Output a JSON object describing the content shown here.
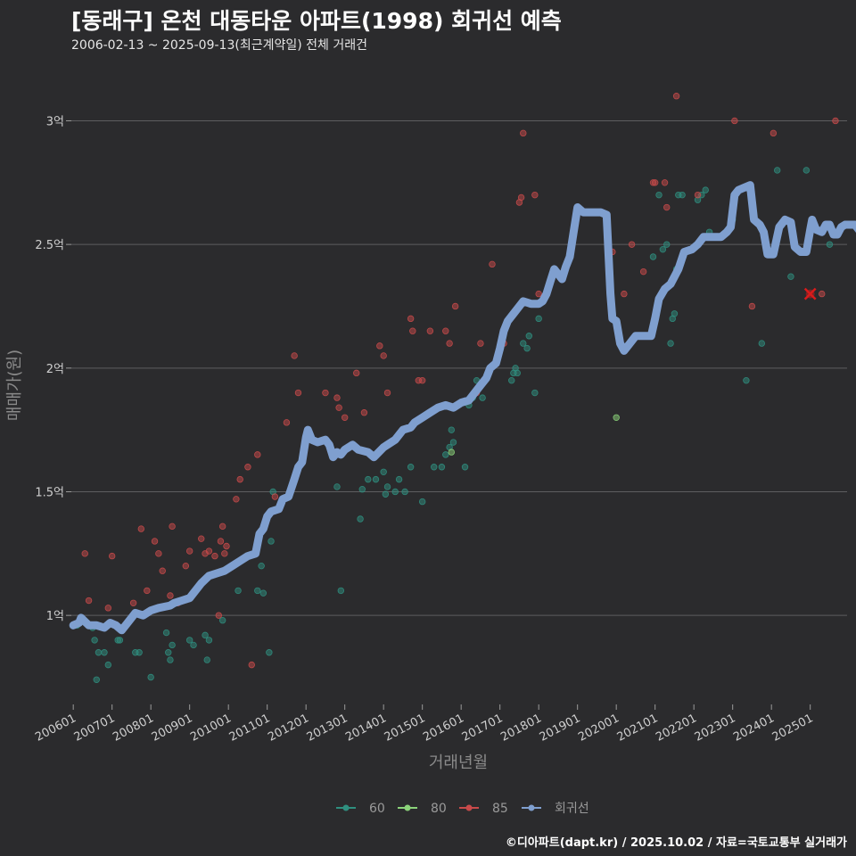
{
  "header": {
    "title": "[동래구] 온천 대동타운 아파트(1998) 회귀선 예측",
    "subtitle": "2006-02-13 ~ 2025-09-13(최근계약일) 전체 거래건"
  },
  "footer": {
    "caption": "©디아파트(dapt.kr) / 2025.10.02 / 자료=국토교통부 실거래가"
  },
  "colors": {
    "background": "#2b2b2d",
    "grid": "#5e5e60",
    "s60": "#2f8f7f",
    "s80": "#8bd37a",
    "s85": "#c84a4a",
    "regression": "#7f9fcf",
    "predict": "#d91b1b"
  },
  "chart_data": {
    "type": "scatter",
    "title": "[동래구] 온천 대동타운 아파트(1998) 회귀선 예측",
    "subtitle": "2006-02-13 ~ 2025-09-13(최근계약일) 전체 거래건",
    "xlabel": "거래년월",
    "ylabel": "매매가(원)",
    "xlim": [
      2005.95,
      2025.95
    ],
    "ylim": [
      0.64,
      3.2
    ],
    "x_ticks": [
      {
        "value": 2006.0,
        "label": "200601"
      },
      {
        "value": 2007.0,
        "label": "200701"
      },
      {
        "value": 2008.0,
        "label": "200801"
      },
      {
        "value": 2009.0,
        "label": "200901"
      },
      {
        "value": 2010.0,
        "label": "201001"
      },
      {
        "value": 2011.0,
        "label": "201101"
      },
      {
        "value": 2012.0,
        "label": "201201"
      },
      {
        "value": 2013.0,
        "label": "201301"
      },
      {
        "value": 2014.0,
        "label": "201401"
      },
      {
        "value": 2015.0,
        "label": "201501"
      },
      {
        "value": 2016.0,
        "label": "201601"
      },
      {
        "value": 2017.0,
        "label": "201701"
      },
      {
        "value": 2018.0,
        "label": "201801"
      },
      {
        "value": 2019.0,
        "label": "201901"
      },
      {
        "value": 2020.0,
        "label": "202001"
      },
      {
        "value": 2021.0,
        "label": "202101"
      },
      {
        "value": 2022.0,
        "label": "202201"
      },
      {
        "value": 2023.0,
        "label": "202301"
      },
      {
        "value": 2024.0,
        "label": "202401"
      },
      {
        "value": 2025.0,
        "label": "202501"
      }
    ],
    "y_ticks": [
      {
        "value": 1.0,
        "label": "1억"
      },
      {
        "value": 1.5,
        "label": "1.5억"
      },
      {
        "value": 2.0,
        "label": "2억"
      },
      {
        "value": 2.5,
        "label": "2.5억"
      },
      {
        "value": 3.0,
        "label": "3억"
      }
    ],
    "legend": {
      "position": "bottom",
      "entries": [
        {
          "key": "s60",
          "label": "60"
        },
        {
          "key": "s80",
          "label": "80"
        },
        {
          "key": "s85",
          "label": "85"
        },
        {
          "key": "regression",
          "label": "회귀선"
        }
      ]
    },
    "series": [
      {
        "key": "s60",
        "name": "60",
        "points": [
          [
            2006.1,
            0.96
          ],
          [
            2006.5,
            0.95
          ],
          [
            2006.55,
            0.9
          ],
          [
            2006.6,
            0.74
          ],
          [
            2006.65,
            0.85
          ],
          [
            2006.8,
            0.85
          ],
          [
            2006.9,
            0.8
          ],
          [
            2007.15,
            0.9
          ],
          [
            2007.2,
            0.9
          ],
          [
            2007.6,
            0.85
          ],
          [
            2007.7,
            0.85
          ],
          [
            2008.0,
            0.75
          ],
          [
            2008.4,
            0.93
          ],
          [
            2008.45,
            0.85
          ],
          [
            2008.5,
            0.82
          ],
          [
            2008.55,
            0.88
          ],
          [
            2009.0,
            0.9
          ],
          [
            2009.1,
            0.88
          ],
          [
            2009.4,
            0.92
          ],
          [
            2009.45,
            0.82
          ],
          [
            2009.5,
            0.9
          ],
          [
            2009.85,
            0.98
          ],
          [
            2010.25,
            1.1
          ],
          [
            2010.75,
            1.1
          ],
          [
            2010.85,
            1.2
          ],
          [
            2010.9,
            1.09
          ],
          [
            2011.05,
            0.85
          ],
          [
            2011.1,
            1.3
          ],
          [
            2011.15,
            1.5
          ],
          [
            2012.8,
            1.52
          ],
          [
            2012.9,
            1.1
          ],
          [
            2013.4,
            1.39
          ],
          [
            2013.45,
            1.51
          ],
          [
            2013.6,
            1.55
          ],
          [
            2013.8,
            1.55
          ],
          [
            2014.0,
            1.58
          ],
          [
            2014.05,
            1.49
          ],
          [
            2014.1,
            1.52
          ],
          [
            2014.3,
            1.5
          ],
          [
            2014.4,
            1.55
          ],
          [
            2014.55,
            1.5
          ],
          [
            2014.7,
            1.6
          ],
          [
            2015.0,
            1.46
          ],
          [
            2015.3,
            1.6
          ],
          [
            2015.5,
            1.6
          ],
          [
            2015.6,
            1.65
          ],
          [
            2015.7,
            1.68
          ],
          [
            2015.75,
            1.75
          ],
          [
            2015.8,
            1.7
          ],
          [
            2016.1,
            1.6
          ],
          [
            2016.2,
            1.85
          ],
          [
            2016.3,
            1.88
          ],
          [
            2016.4,
            1.95
          ],
          [
            2016.55,
            1.88
          ],
          [
            2017.3,
            1.95
          ],
          [
            2017.35,
            1.98
          ],
          [
            2017.4,
            2.0
          ],
          [
            2017.45,
            1.98
          ],
          [
            2017.6,
            2.1
          ],
          [
            2017.7,
            2.08
          ],
          [
            2017.75,
            2.13
          ],
          [
            2017.9,
            1.9
          ],
          [
            2018.0,
            2.2
          ],
          [
            2020.95,
            2.45
          ],
          [
            2021.1,
            2.7
          ],
          [
            2021.2,
            2.48
          ],
          [
            2021.3,
            2.5
          ],
          [
            2021.4,
            2.1
          ],
          [
            2021.45,
            2.2
          ],
          [
            2021.5,
            2.22
          ],
          [
            2021.55,
            2.4
          ],
          [
            2021.6,
            2.7
          ],
          [
            2021.7,
            2.7
          ],
          [
            2022.1,
            2.68
          ],
          [
            2022.2,
            2.7
          ],
          [
            2022.3,
            2.72
          ],
          [
            2022.4,
            2.55
          ],
          [
            2023.0,
            2.6
          ],
          [
            2023.35,
            1.95
          ],
          [
            2023.75,
            2.1
          ],
          [
            2024.15,
            2.8
          ],
          [
            2024.5,
            2.37
          ],
          [
            2024.9,
            2.8
          ],
          [
            2025.5,
            2.5
          ]
        ]
      },
      {
        "key": "s80",
        "name": "80",
        "points": [
          [
            2015.75,
            1.66
          ],
          [
            2020.0,
            1.8
          ]
        ]
      },
      {
        "key": "s85",
        "name": "85",
        "points": [
          [
            2006.3,
            1.25
          ],
          [
            2006.4,
            1.06
          ],
          [
            2006.9,
            1.03
          ],
          [
            2007.0,
            1.24
          ],
          [
            2007.55,
            1.05
          ],
          [
            2007.75,
            1.35
          ],
          [
            2007.9,
            1.1
          ],
          [
            2008.1,
            1.3
          ],
          [
            2008.2,
            1.25
          ],
          [
            2008.3,
            1.18
          ],
          [
            2008.5,
            1.08
          ],
          [
            2008.55,
            1.36
          ],
          [
            2008.7,
            1.05
          ],
          [
            2008.9,
            1.2
          ],
          [
            2009.0,
            1.26
          ],
          [
            2009.3,
            1.31
          ],
          [
            2009.4,
            1.25
          ],
          [
            2009.5,
            1.26
          ],
          [
            2009.65,
            1.24
          ],
          [
            2009.75,
            1.0
          ],
          [
            2009.8,
            1.3
          ],
          [
            2009.85,
            1.36
          ],
          [
            2009.9,
            1.25
          ],
          [
            2009.95,
            1.28
          ],
          [
            2010.2,
            1.47
          ],
          [
            2010.3,
            1.55
          ],
          [
            2010.5,
            1.6
          ],
          [
            2010.6,
            0.8
          ],
          [
            2010.75,
            1.65
          ],
          [
            2011.0,
            1.4
          ],
          [
            2011.2,
            1.48
          ],
          [
            2011.5,
            1.78
          ],
          [
            2011.7,
            2.05
          ],
          [
            2011.8,
            1.9
          ],
          [
            2012.5,
            1.9
          ],
          [
            2012.8,
            1.88
          ],
          [
            2012.85,
            1.84
          ],
          [
            2013.0,
            1.8
          ],
          [
            2013.3,
            1.98
          ],
          [
            2013.5,
            1.82
          ],
          [
            2013.9,
            2.09
          ],
          [
            2014.0,
            2.05
          ],
          [
            2014.1,
            1.9
          ],
          [
            2014.7,
            2.2
          ],
          [
            2014.75,
            2.15
          ],
          [
            2014.9,
            1.95
          ],
          [
            2015.0,
            1.95
          ],
          [
            2015.2,
            2.15
          ],
          [
            2015.6,
            2.15
          ],
          [
            2015.7,
            2.1
          ],
          [
            2015.85,
            2.25
          ],
          [
            2016.4,
            1.9
          ],
          [
            2016.5,
            2.1
          ],
          [
            2016.8,
            2.42
          ],
          [
            2017.1,
            2.1
          ],
          [
            2017.5,
            2.67
          ],
          [
            2017.55,
            2.69
          ],
          [
            2017.6,
            2.95
          ],
          [
            2017.9,
            2.7
          ],
          [
            2018.0,
            2.3
          ],
          [
            2019.9,
            2.47
          ],
          [
            2020.2,
            2.3
          ],
          [
            2020.4,
            2.5
          ],
          [
            2020.7,
            2.39
          ],
          [
            2020.95,
            2.75
          ],
          [
            2021.0,
            2.75
          ],
          [
            2021.25,
            2.75
          ],
          [
            2021.3,
            2.65
          ],
          [
            2021.55,
            3.1
          ],
          [
            2022.1,
            2.7
          ],
          [
            2023.05,
            3.0
          ],
          [
            2023.5,
            2.25
          ],
          [
            2024.05,
            2.95
          ],
          [
            2025.3,
            2.3
          ],
          [
            2025.65,
            3.0
          ]
        ]
      }
    ],
    "regression_line": [
      [
        2006.0,
        0.96
      ],
      [
        2006.15,
        0.97
      ],
      [
        2006.2,
        0.99
      ],
      [
        2006.4,
        0.96
      ],
      [
        2006.6,
        0.96
      ],
      [
        2006.8,
        0.95
      ],
      [
        2006.95,
        0.97
      ],
      [
        2007.1,
        0.96
      ],
      [
        2007.25,
        0.94
      ],
      [
        2007.45,
        0.98
      ],
      [
        2007.6,
        1.01
      ],
      [
        2007.8,
        1.0
      ],
      [
        2008.0,
        1.02
      ],
      [
        2008.2,
        1.03
      ],
      [
        2008.5,
        1.04
      ],
      [
        2008.6,
        1.05
      ],
      [
        2008.8,
        1.06
      ],
      [
        2009.0,
        1.07
      ],
      [
        2009.1,
        1.09
      ],
      [
        2009.3,
        1.13
      ],
      [
        2009.5,
        1.16
      ],
      [
        2009.7,
        1.17
      ],
      [
        2009.9,
        1.18
      ],
      [
        2010.1,
        1.2
      ],
      [
        2010.3,
        1.22
      ],
      [
        2010.5,
        1.24
      ],
      [
        2010.7,
        1.25
      ],
      [
        2010.8,
        1.33
      ],
      [
        2010.9,
        1.35
      ],
      [
        2011.0,
        1.4
      ],
      [
        2011.1,
        1.42
      ],
      [
        2011.3,
        1.43
      ],
      [
        2011.4,
        1.47
      ],
      [
        2011.55,
        1.48
      ],
      [
        2011.7,
        1.55
      ],
      [
        2011.8,
        1.6
      ],
      [
        2011.9,
        1.62
      ],
      [
        2012.0,
        1.72
      ],
      [
        2012.05,
        1.75
      ],
      [
        2012.15,
        1.71
      ],
      [
        2012.3,
        1.7
      ],
      [
        2012.5,
        1.71
      ],
      [
        2012.6,
        1.69
      ],
      [
        2012.7,
        1.64
      ],
      [
        2012.8,
        1.66
      ],
      [
        2012.9,
        1.65
      ],
      [
        2013.0,
        1.67
      ],
      [
        2013.2,
        1.69
      ],
      [
        2013.35,
        1.67
      ],
      [
        2013.6,
        1.66
      ],
      [
        2013.75,
        1.64
      ],
      [
        2014.0,
        1.68
      ],
      [
        2014.1,
        1.69
      ],
      [
        2014.3,
        1.71
      ],
      [
        2014.5,
        1.75
      ],
      [
        2014.7,
        1.76
      ],
      [
        2014.8,
        1.78
      ],
      [
        2015.0,
        1.8
      ],
      [
        2015.2,
        1.82
      ],
      [
        2015.4,
        1.84
      ],
      [
        2015.6,
        1.85
      ],
      [
        2015.8,
        1.84
      ],
      [
        2016.0,
        1.86
      ],
      [
        2016.2,
        1.87
      ],
      [
        2016.35,
        1.9
      ],
      [
        2016.5,
        1.93
      ],
      [
        2016.65,
        1.96
      ],
      [
        2016.75,
        2.0
      ],
      [
        2016.9,
        2.02
      ],
      [
        2017.0,
        2.08
      ],
      [
        2017.1,
        2.15
      ],
      [
        2017.2,
        2.19
      ],
      [
        2017.35,
        2.22
      ],
      [
        2017.5,
        2.25
      ],
      [
        2017.6,
        2.27
      ],
      [
        2017.8,
        2.26
      ],
      [
        2018.0,
        2.26
      ],
      [
        2018.1,
        2.27
      ],
      [
        2018.2,
        2.3
      ],
      [
        2018.3,
        2.35
      ],
      [
        2018.4,
        2.4
      ],
      [
        2018.5,
        2.38
      ],
      [
        2018.6,
        2.36
      ],
      [
        2018.7,
        2.41
      ],
      [
        2018.8,
        2.45
      ],
      [
        2018.9,
        2.55
      ],
      [
        2019.0,
        2.65
      ],
      [
        2019.15,
        2.63
      ],
      [
        2019.4,
        2.63
      ],
      [
        2019.6,
        2.63
      ],
      [
        2019.75,
        2.62
      ],
      [
        2019.85,
        2.3
      ],
      [
        2019.9,
        2.2
      ],
      [
        2020.0,
        2.19
      ],
      [
        2020.1,
        2.1
      ],
      [
        2020.2,
        2.07
      ],
      [
        2020.35,
        2.1
      ],
      [
        2020.5,
        2.13
      ],
      [
        2020.7,
        2.13
      ],
      [
        2020.9,
        2.13
      ],
      [
        2021.0,
        2.2
      ],
      [
        2021.1,
        2.28
      ],
      [
        2021.25,
        2.32
      ],
      [
        2021.4,
        2.34
      ],
      [
        2021.6,
        2.4
      ],
      [
        2021.75,
        2.47
      ],
      [
        2021.95,
        2.48
      ],
      [
        2022.1,
        2.5
      ],
      [
        2022.25,
        2.53
      ],
      [
        2022.4,
        2.53
      ],
      [
        2022.55,
        2.53
      ],
      [
        2022.7,
        2.53
      ],
      [
        2022.85,
        2.55
      ],
      [
        2022.95,
        2.57
      ],
      [
        2023.05,
        2.7
      ],
      [
        2023.15,
        2.72
      ],
      [
        2023.3,
        2.73
      ],
      [
        2023.45,
        2.74
      ],
      [
        2023.55,
        2.6
      ],
      [
        2023.7,
        2.58
      ],
      [
        2023.8,
        2.55
      ],
      [
        2023.9,
        2.46
      ],
      [
        2024.05,
        2.46
      ],
      [
        2024.2,
        2.57
      ],
      [
        2024.35,
        2.6
      ],
      [
        2024.5,
        2.59
      ],
      [
        2024.6,
        2.49
      ],
      [
        2024.75,
        2.47
      ],
      [
        2024.9,
        2.47
      ],
      [
        2025.0,
        2.56
      ],
      [
        2025.05,
        2.6
      ],
      [
        2025.15,
        2.56
      ],
      [
        2025.3,
        2.55
      ],
      [
        2025.4,
        2.58
      ],
      [
        2025.5,
        2.58
      ],
      [
        2025.6,
        2.54
      ],
      [
        2025.7,
        2.54
      ],
      [
        2025.8,
        2.57
      ],
      [
        2025.9,
        2.58
      ],
      [
        2026.0,
        2.58
      ],
      [
        2026.15,
        2.58
      ],
      [
        2026.3,
        2.55
      ],
      [
        2026.45,
        2.52
      ]
    ],
    "prediction_marker": [
      2025.0,
      2.3
    ]
  }
}
